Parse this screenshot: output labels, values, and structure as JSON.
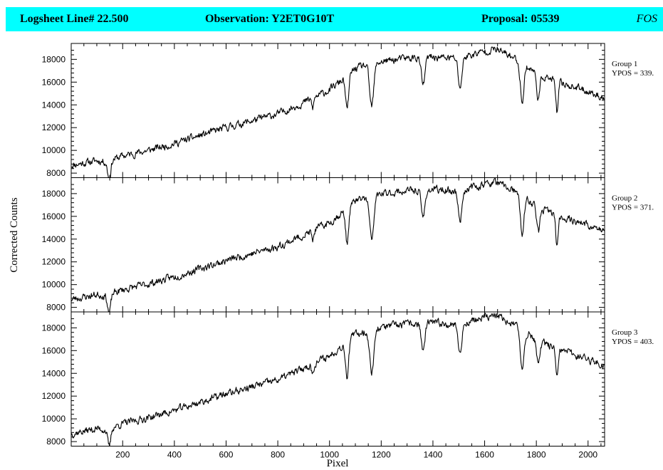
{
  "header": {
    "logsheet": "Logsheet Line# 22.500",
    "observation": "Observation: Y2ET0G10T",
    "proposal": "Proposal: 05539",
    "instrument": "FOS",
    "background_color": "#00ffff"
  },
  "chart_data": {
    "type": "line",
    "xlabel": "Pixel",
    "ylabel": "Corrected Counts",
    "xlim": [
      1,
      2064
    ],
    "ylim": [
      7600,
      19400
    ],
    "x_ticks": [
      200,
      400,
      600,
      800,
      1000,
      1200,
      1400,
      1600,
      1800,
      2000
    ],
    "y_ticks": [
      8000,
      10000,
      12000,
      14000,
      16000,
      18000
    ],
    "grid": false,
    "line_color": "#000000",
    "spectrum_profile": {
      "x": [
        1,
        100,
        140,
        160,
        200,
        300,
        400,
        500,
        600,
        700,
        800,
        900,
        1000,
        1050,
        1100,
        1160,
        1200,
        1300,
        1400,
        1500,
        1550,
        1600,
        1640,
        1700,
        1750,
        1800,
        1850,
        1900,
        2000,
        2064
      ],
      "y": [
        8700,
        9100,
        9000,
        9200,
        9500,
        10000,
        10600,
        11300,
        12000,
        12600,
        13200,
        14200,
        15300,
        16200,
        17200,
        17600,
        17800,
        18100,
        18200,
        18100,
        18400,
        18700,
        18900,
        18300,
        17600,
        16800,
        16300,
        15900,
        15200,
        14600
      ]
    },
    "absorption_features": [
      {
        "x": 148,
        "depth": 1600,
        "width": 6
      },
      {
        "x": 935,
        "depth": 900,
        "width": 4
      },
      {
        "x": 1068,
        "depth": 3000,
        "width": 6
      },
      {
        "x": 1163,
        "depth": 3800,
        "width": 8
      },
      {
        "x": 1362,
        "depth": 2400,
        "width": 7
      },
      {
        "x": 1505,
        "depth": 2600,
        "width": 7
      },
      {
        "x": 1745,
        "depth": 3300,
        "width": 7
      },
      {
        "x": 1808,
        "depth": 2200,
        "width": 6
      },
      {
        "x": 1880,
        "depth": 2700,
        "width": 5
      }
    ],
    "panels": [
      {
        "name": "Group 1",
        "ypos": "YPOS = 339.",
        "seed": 11,
        "offset": 0
      },
      {
        "name": "Group 2",
        "ypos": "YPOS = 371.",
        "seed": 23,
        "offset": 150
      },
      {
        "name": "Group 3",
        "ypos": "YPOS = 403.",
        "seed": 37,
        "offset": 250
      }
    ]
  }
}
